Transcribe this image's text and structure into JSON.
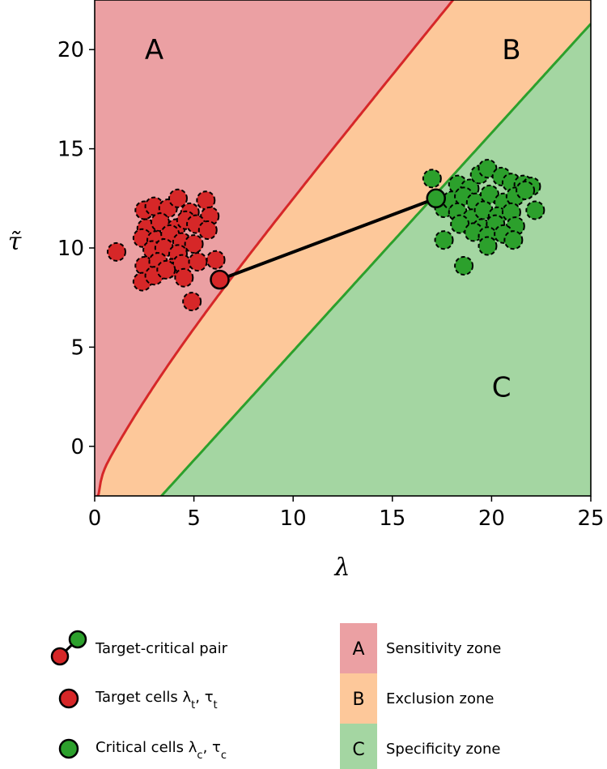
{
  "chart_data": {
    "type": "scatter",
    "xlabel": "λ",
    "ylabel": "τ̃",
    "xlim": [
      0,
      25
    ],
    "ylim": [
      -2.5,
      22.5
    ],
    "xticks": [
      "0",
      "5",
      "10",
      "15",
      "20",
      "25"
    ],
    "yticks": [
      "0",
      "5",
      "10",
      "15",
      "20"
    ],
    "grid": false,
    "zones": [
      {
        "letter": "A",
        "name": "Sensitivity zone",
        "color": "#eba0a3",
        "label_pos": [
          3.0,
          20.0
        ]
      },
      {
        "letter": "B",
        "name": "Exclusion zone",
        "color": "#fdc89a",
        "label_pos": [
          21.0,
          20.0
        ]
      },
      {
        "letter": "C",
        "name": "Specificity zone",
        "color": "#a4d6a2",
        "label_pos": [
          20.5,
          3.0
        ]
      }
    ],
    "boundary_colors": {
      "upper": "#d62728",
      "lower": "#2ca02c"
    },
    "target_cells": {
      "color": "#d62728",
      "points": [
        [
          1.1,
          9.8
        ],
        [
          2.5,
          11.9
        ],
        [
          3.0,
          12.1
        ],
        [
          3.7,
          12.0
        ],
        [
          4.2,
          12.5
        ],
        [
          4.8,
          11.8
        ],
        [
          5.6,
          12.4
        ],
        [
          5.8,
          11.6
        ],
        [
          2.6,
          11.0
        ],
        [
          3.3,
          11.3
        ],
        [
          4.1,
          11.0
        ],
        [
          4.6,
          11.4
        ],
        [
          5.1,
          11.2
        ],
        [
          5.7,
          10.9
        ],
        [
          2.4,
          10.5
        ],
        [
          3.1,
          10.4
        ],
        [
          3.8,
          10.7
        ],
        [
          4.4,
          10.3
        ],
        [
          5.0,
          10.2
        ],
        [
          2.9,
          9.9
        ],
        [
          3.5,
          10.0
        ],
        [
          4.2,
          9.7
        ],
        [
          2.5,
          9.1
        ],
        [
          3.2,
          9.3
        ],
        [
          3.9,
          9.0
        ],
        [
          4.4,
          9.2
        ],
        [
          5.2,
          9.3
        ],
        [
          6.1,
          9.4
        ],
        [
          2.4,
          8.3
        ],
        [
          3.0,
          8.6
        ],
        [
          3.6,
          8.9
        ],
        [
          4.5,
          8.5
        ],
        [
          4.9,
          7.3
        ]
      ]
    },
    "critical_cells": {
      "color": "#2ca02c",
      "points": [
        [
          17.0,
          13.5
        ],
        [
          17.6,
          12.0
        ],
        [
          18.3,
          13.2
        ],
        [
          18.9,
          13.0
        ],
        [
          19.4,
          13.7
        ],
        [
          19.8,
          14.0
        ],
        [
          20.5,
          13.6
        ],
        [
          21.0,
          13.3
        ],
        [
          21.6,
          13.2
        ],
        [
          22.0,
          13.1
        ],
        [
          18.0,
          12.4
        ],
        [
          18.6,
          12.6
        ],
        [
          19.2,
          12.3
        ],
        [
          19.9,
          12.7
        ],
        [
          20.6,
          12.3
        ],
        [
          21.2,
          12.6
        ],
        [
          21.7,
          12.9
        ],
        [
          18.3,
          11.8
        ],
        [
          19.0,
          11.5
        ],
        [
          19.6,
          11.9
        ],
        [
          20.3,
          11.6
        ],
        [
          21.0,
          11.8
        ],
        [
          22.2,
          11.9
        ],
        [
          18.4,
          11.2
        ],
        [
          19.5,
          11.0
        ],
        [
          20.2,
          11.2
        ],
        [
          21.2,
          11.1
        ],
        [
          17.6,
          10.4
        ],
        [
          19.1,
          10.8
        ],
        [
          19.8,
          10.6
        ],
        [
          20.6,
          10.7
        ],
        [
          21.1,
          10.4
        ],
        [
          19.8,
          10.1
        ],
        [
          18.6,
          9.1
        ]
      ]
    },
    "pair": {
      "target": [
        6.3,
        8.4
      ],
      "critical": [
        17.2,
        12.5
      ]
    }
  },
  "legend": {
    "items": [
      {
        "text": "Target-critical pair"
      },
      {
        "text": "Target cells λ",
        "sub1": "t",
        "mid": ", τ",
        "sub2": "t"
      },
      {
        "text": "Critical cells λ",
        "sub1": "c",
        "mid": ", τ",
        "sub2": "c"
      }
    ],
    "zone_items": [
      {
        "letter": "A",
        "text": "Sensitivity zone",
        "color": "#eba0a3"
      },
      {
        "letter": "B",
        "text": "Exclusion zone",
        "color": "#fdc89a"
      },
      {
        "letter": "C",
        "text": "Specificity zone",
        "color": "#a4d6a2"
      }
    ]
  }
}
